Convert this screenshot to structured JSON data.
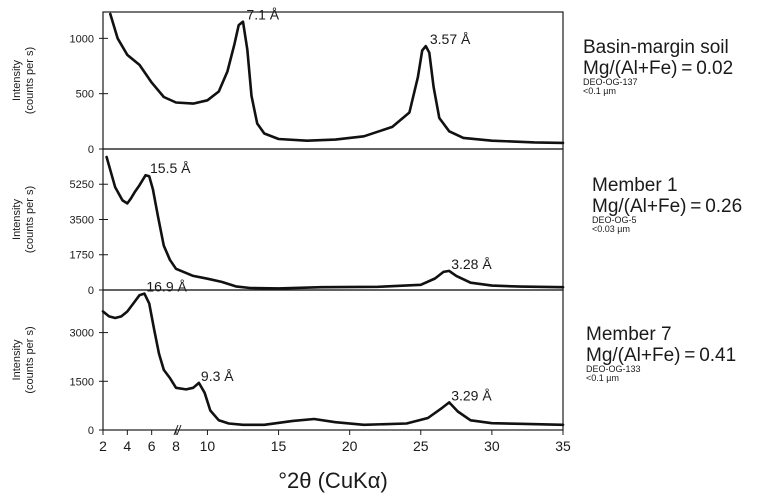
{
  "x_axis_label": "°2θ (CuKα)",
  "chart_data": [
    {
      "type": "line",
      "panel_title": "Basin-margin soil",
      "ratio": "Mg/(Al+Fe) = 0.02",
      "sample_id": "DEO-OG-137",
      "size_fraction": "<0.1 µm",
      "ylabel": "Intensity\n(counts per s)",
      "xlabel": "°2θ (CuKα)",
      "xlim": [
        2,
        35
      ],
      "ylim": [
        0,
        1220
      ],
      "y_ticks": [
        0,
        500,
        1000
      ],
      "x_ticks": [
        2,
        4,
        6,
        8,
        10,
        15,
        20,
        25,
        30,
        35
      ],
      "series": [
        {
          "x": [
            2.6,
            3.2,
            4,
            5,
            6,
            7,
            8,
            9,
            10,
            10.8,
            11.4,
            11.9,
            12.2,
            12.5,
            12.8,
            13.1,
            13.5,
            14,
            15,
            17,
            19,
            21,
            23,
            24.2,
            24.8,
            25.1,
            25.35,
            25.6,
            25.9,
            26.3,
            27,
            28,
            30,
            33,
            35
          ],
          "y": [
            1220,
            1000,
            850,
            760,
            600,
            470,
            420,
            410,
            440,
            520,
            700,
            950,
            1120,
            1150,
            900,
            480,
            230,
            140,
            90,
            75,
            85,
            115,
            200,
            330,
            650,
            890,
            930,
            870,
            560,
            280,
            160,
            100,
            75,
            60,
            55
          ]
        }
      ],
      "annotations": [
        {
          "text": "7.1 Å",
          "x": 12.6,
          "y": 1150
        },
        {
          "text": "3.57 Å",
          "x": 25.5,
          "y": 930
        }
      ]
    },
    {
      "type": "line",
      "panel_title": "Member 1",
      "ratio": "Mg/(Al+Fe) = 0.26",
      "sample_id": "DEO-OG-5",
      "size_fraction": "<0.03 µm",
      "ylabel": "Intensity\n(counts per s)",
      "xlabel": "°2θ (CuKα)",
      "xlim": [
        2,
        35
      ],
      "ylim": [
        0,
        6900
      ],
      "y_ticks": [
        0,
        1750,
        3500,
        5250
      ],
      "x_ticks": [
        2,
        4,
        6,
        8,
        10,
        15,
        20,
        25,
        30,
        35
      ],
      "series": [
        {
          "x": [
            2.3,
            3,
            3.6,
            4,
            4.3,
            4.6,
            5,
            5.5,
            5.8,
            6.1,
            6.5,
            7,
            7.5,
            8,
            9,
            10,
            11,
            12,
            13,
            15,
            18,
            22,
            25,
            26,
            26.6,
            27,
            27.5,
            28.5,
            30,
            32,
            35
          ],
          "y": [
            6600,
            5100,
            4450,
            4300,
            4550,
            4850,
            5200,
            5700,
            5650,
            5000,
            3700,
            2200,
            1500,
            1050,
            700,
            560,
            400,
            180,
            100,
            80,
            140,
            160,
            260,
            570,
            900,
            950,
            700,
            360,
            220,
            170,
            140
          ]
        }
      ],
      "annotations": [
        {
          "text": "15.5 Å",
          "x": 5.7,
          "y": 5700
        },
        {
          "text": "3.28 Å",
          "x": 27,
          "y": 950
        }
      ]
    },
    {
      "type": "line",
      "panel_title": "Member 7",
      "ratio": "Mg/(Al+Fe) = 0.41",
      "sample_id": "DEO-OG-133",
      "size_fraction": "<0.1 µm",
      "ylabel": "Intensity\n(counts per s)",
      "xlabel": "°2θ (CuKα)",
      "xlim": [
        2,
        35
      ],
      "ylim": [
        0,
        4250
      ],
      "y_ticks": [
        0,
        1500,
        3000
      ],
      "x_ticks": [
        2,
        4,
        6,
        8,
        10,
        15,
        20,
        25,
        30,
        35
      ],
      "series": [
        {
          "x": [
            2,
            2.5,
            3,
            3.5,
            4,
            4.5,
            5,
            5.4,
            5.8,
            6.2,
            6.6,
            7,
            7.5,
            8,
            8.5,
            9,
            9.4,
            9.8,
            10.2,
            10.8,
            11.5,
            12.5,
            14,
            16,
            17.5,
            19,
            21,
            24,
            25.5,
            26.5,
            27,
            27.6,
            28.5,
            30,
            32,
            35
          ],
          "y": [
            3650,
            3500,
            3450,
            3500,
            3650,
            3900,
            4150,
            4200,
            3900,
            3100,
            2350,
            1850,
            1600,
            1300,
            1250,
            1300,
            1450,
            1150,
            600,
            300,
            200,
            160,
            160,
            280,
            340,
            240,
            160,
            200,
            370,
            680,
            850,
            570,
            300,
            210,
            190,
            160
          ]
        }
      ],
      "annotations": [
        {
          "text": "16.9 Å",
          "x": 5.4,
          "y": 4200
        },
        {
          "text": "9.3 Å",
          "x": 9.4,
          "y": 1450
        },
        {
          "text": "3.29 Å",
          "x": 27,
          "y": 850
        }
      ]
    }
  ]
}
